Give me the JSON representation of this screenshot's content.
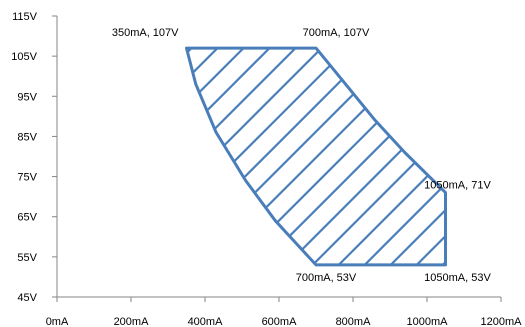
{
  "chart_data": {
    "type": "area",
    "title": "",
    "xlabel": "",
    "ylabel": "",
    "xlim": [
      0,
      1200
    ],
    "ylim": [
      45,
      115
    ],
    "x_unit": "mA",
    "y_unit": "V",
    "grid": false,
    "legend": "none",
    "x_ticks": [
      "0mA",
      "200mA",
      "400mA",
      "600mA",
      "800mA",
      "1000mA",
      "1200mA"
    ],
    "y_ticks": [
      "115V",
      "105V",
      "95V",
      "85V",
      "75V",
      "65V",
      "55V",
      "45V"
    ],
    "x_tick_values": [
      0,
      200,
      400,
      600,
      800,
      1000,
      1200
    ],
    "y_tick_values": [
      115,
      105,
      95,
      85,
      75,
      65,
      55,
      45
    ],
    "region": {
      "fill_pattern": "diagonal-hatch",
      "color": "#4a7ebb",
      "boundary": [
        {
          "x": 350,
          "y": 107
        },
        {
          "x": 700,
          "y": 107
        },
        {
          "x": 780,
          "y": 98
        },
        {
          "x": 860,
          "y": 89
        },
        {
          "x": 940,
          "y": 81
        },
        {
          "x": 1050,
          "y": 71
        },
        {
          "x": 1050,
          "y": 53
        },
        {
          "x": 700,
          "y": 53
        },
        {
          "x": 590,
          "y": 64
        },
        {
          "x": 510,
          "y": 74
        },
        {
          "x": 430,
          "y": 86
        },
        {
          "x": 375,
          "y": 98
        }
      ]
    },
    "annotations": [
      {
        "text": "350mA, 107V",
        "x": 350,
        "y": 107
      },
      {
        "text": "700mA, 107V",
        "x": 700,
        "y": 107
      },
      {
        "text": "1050mA, 71V",
        "x": 1050,
        "y": 71
      },
      {
        "text": "700mA, 53V",
        "x": 700,
        "y": 53
      },
      {
        "text": "1050mA, 53V",
        "x": 1050,
        "y": 53
      }
    ]
  }
}
